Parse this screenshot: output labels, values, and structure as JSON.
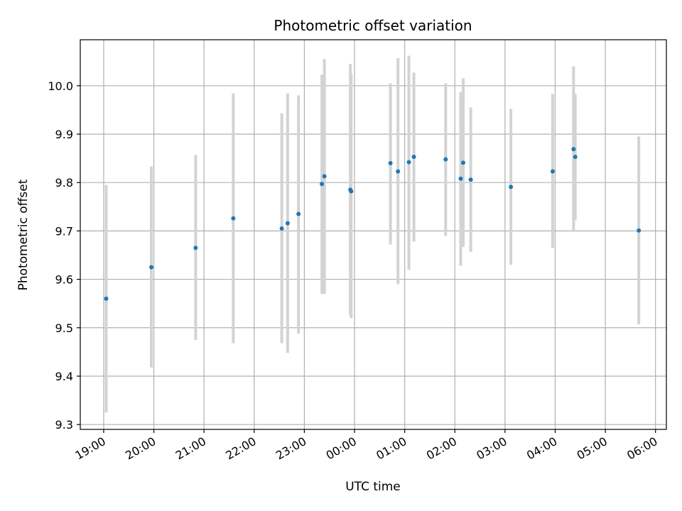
{
  "chart_data": {
    "type": "scatter",
    "title": "Photometric offset variation",
    "xlabel": "UTC time",
    "ylabel": "Photometric offset",
    "x_axis_type": "time",
    "x_range": [
      "18:32",
      "06:13"
    ],
    "ylim": [
      9.29,
      10.095
    ],
    "x_ticks": [
      "19:00",
      "20:00",
      "21:00",
      "22:00",
      "23:00",
      "00:00",
      "01:00",
      "02:00",
      "03:00",
      "04:00",
      "05:00",
      "06:00"
    ],
    "y_ticks": [
      "9.3",
      "9.4",
      "9.5",
      "9.6",
      "9.7",
      "9.8",
      "9.9",
      "10.0"
    ],
    "grid": true,
    "colors": {
      "point": "#1f77b4",
      "error_bar": "#d3d3d3",
      "grid": "#b0b0b0"
    },
    "points": [
      {
        "time": "19:03",
        "value": 9.56,
        "low": 9.325,
        "high": 9.795
      },
      {
        "time": "19:57",
        "value": 9.625,
        "low": 9.418,
        "high": 9.833
      },
      {
        "time": "20:50",
        "value": 9.665,
        "low": 9.475,
        "high": 9.857
      },
      {
        "time": "21:35",
        "value": 9.726,
        "low": 9.468,
        "high": 9.984
      },
      {
        "time": "22:33",
        "value": 9.705,
        "low": 9.468,
        "high": 9.943
      },
      {
        "time": "22:40",
        "value": 9.716,
        "low": 9.448,
        "high": 9.984
      },
      {
        "time": "22:53",
        "value": 9.735,
        "low": 9.488,
        "high": 9.98
      },
      {
        "time": "23:21",
        "value": 9.797,
        "low": 9.57,
        "high": 10.023
      },
      {
        "time": "23:24",
        "value": 9.813,
        "low": 9.57,
        "high": 10.055
      },
      {
        "time": "23:55",
        "value": 9.785,
        "low": 9.527,
        "high": 10.045
      },
      {
        "time": "23:56",
        "value": 9.782,
        "low": 9.52,
        "high": 10.025
      },
      {
        "time": "00:43",
        "value": 9.84,
        "low": 9.672,
        "high": 10.005
      },
      {
        "time": "00:52",
        "value": 9.823,
        "low": 9.59,
        "high": 10.057
      },
      {
        "time": "01:05",
        "value": 9.842,
        "low": 9.62,
        "high": 10.062
      },
      {
        "time": "01:11",
        "value": 9.853,
        "low": 9.678,
        "high": 10.027
      },
      {
        "time": "01:49",
        "value": 9.848,
        "low": 9.69,
        "high": 10.005
      },
      {
        "time": "02:07",
        "value": 9.808,
        "low": 9.628,
        "high": 9.987
      },
      {
        "time": "02:10",
        "value": 9.841,
        "low": 9.667,
        "high": 10.015
      },
      {
        "time": "02:19",
        "value": 9.806,
        "low": 9.657,
        "high": 9.955
      },
      {
        "time": "03:07",
        "value": 9.791,
        "low": 9.63,
        "high": 9.952
      },
      {
        "time": "03:57",
        "value": 9.823,
        "low": 9.665,
        "high": 9.983
      },
      {
        "time": "04:22",
        "value": 9.869,
        "low": 9.698,
        "high": 10.04
      },
      {
        "time": "04:24",
        "value": 9.853,
        "low": 9.722,
        "high": 9.983
      },
      {
        "time": "05:40",
        "value": 9.701,
        "low": 9.507,
        "high": 9.895
      }
    ]
  }
}
